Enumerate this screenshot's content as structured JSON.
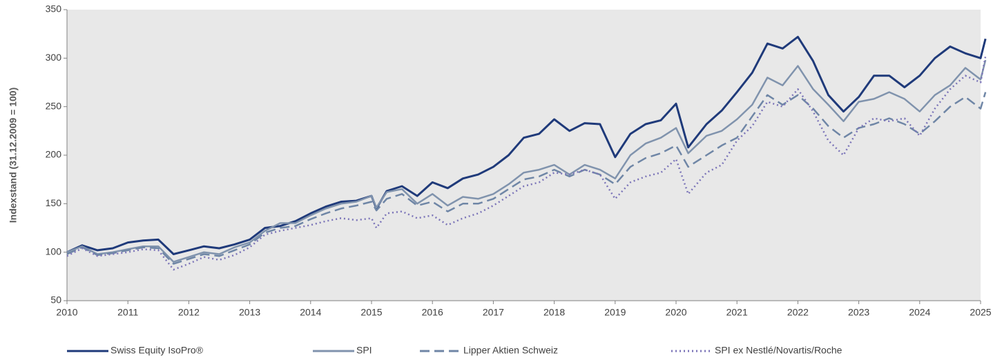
{
  "chart_data": {
    "type": "line",
    "y_label": "Indexstand (31.12.2009 = 100)",
    "x": [
      2010,
      2010.25,
      2010.5,
      2010.75,
      2011,
      2011.25,
      2011.5,
      2011.75,
      2012,
      2012.25,
      2012.5,
      2012.75,
      2013,
      2013.25,
      2013.5,
      2013.75,
      2014,
      2014.25,
      2014.5,
      2014.75,
      2015,
      2015.08,
      2015.25,
      2015.5,
      2015.75,
      2016,
      2016.25,
      2016.5,
      2016.75,
      2017,
      2017.25,
      2017.5,
      2017.75,
      2018,
      2018.25,
      2018.5,
      2018.75,
      2019,
      2019.25,
      2019.5,
      2019.75,
      2020,
      2020.2,
      2020.5,
      2020.75,
      2021,
      2021.25,
      2021.5,
      2021.75,
      2022,
      2022.25,
      2022.5,
      2022.75,
      2023,
      2023.25,
      2023.5,
      2023.75,
      2024,
      2024.25,
      2024.5,
      2024.75,
      2025,
      2025.08
    ],
    "series": [
      {
        "name": "Swiss Equity IsoPro®",
        "color": "#1f3a7a",
        "style": "solid",
        "values": [
          100,
          107,
          102,
          104,
          110,
          112,
          113,
          98,
          102,
          106,
          104,
          108,
          113,
          125,
          127,
          132,
          140,
          147,
          152,
          153,
          158,
          145,
          163,
          168,
          158,
          172,
          166,
          176,
          180,
          188,
          200,
          218,
          222,
          237,
          225,
          233,
          232,
          198,
          222,
          232,
          236,
          253,
          208,
          232,
          246,
          265,
          285,
          315,
          310,
          322,
          297,
          262,
          245,
          260,
          282,
          282,
          270,
          282,
          300,
          312,
          305,
          300,
          320
        ]
      },
      {
        "name": "SPI",
        "color": "#8093ad",
        "style": "solid",
        "values": [
          100,
          106,
          98,
          100,
          103,
          106,
          106,
          90,
          95,
          100,
          98,
          105,
          110,
          122,
          130,
          130,
          138,
          145,
          150,
          152,
          158,
          146,
          162,
          165,
          150,
          160,
          148,
          157,
          155,
          160,
          170,
          182,
          185,
          190,
          180,
          190,
          185,
          176,
          200,
          212,
          218,
          228,
          202,
          220,
          225,
          237,
          252,
          280,
          272,
          292,
          268,
          252,
          235,
          255,
          258,
          265,
          258,
          245,
          262,
          272,
          290,
          278,
          298
        ]
      },
      {
        "name": "Lipper Aktien Schweiz",
        "color": "#6f86a6",
        "style": "dashed",
        "values": [
          98,
          105,
          97,
          99,
          102,
          105,
          104,
          88,
          93,
          98,
          96,
          102,
          108,
          120,
          125,
          127,
          134,
          140,
          145,
          148,
          152,
          143,
          155,
          160,
          148,
          152,
          142,
          150,
          150,
          155,
          165,
          175,
          178,
          185,
          178,
          185,
          180,
          170,
          188,
          197,
          202,
          210,
          188,
          200,
          210,
          218,
          240,
          262,
          252,
          262,
          248,
          230,
          218,
          228,
          232,
          238,
          232,
          222,
          235,
          250,
          260,
          248,
          265
        ]
      },
      {
        "name": "SPI ex Nestlé/Novartis/Roche",
        "color": "#7b74b8",
        "style": "dotted",
        "values": [
          96,
          104,
          96,
          98,
          100,
          103,
          102,
          82,
          88,
          95,
          92,
          97,
          105,
          118,
          122,
          125,
          128,
          132,
          135,
          133,
          135,
          125,
          140,
          142,
          135,
          138,
          128,
          135,
          140,
          148,
          158,
          168,
          172,
          182,
          180,
          185,
          180,
          155,
          172,
          178,
          182,
          196,
          160,
          182,
          190,
          215,
          230,
          255,
          250,
          268,
          245,
          215,
          200,
          228,
          238,
          235,
          238,
          220,
          248,
          268,
          282,
          275,
          302
        ]
      }
    ],
    "xlim": [
      2010,
      2025
    ],
    "xticks": [
      2010,
      2011,
      2012,
      2013,
      2014,
      2015,
      2016,
      2017,
      2018,
      2019,
      2020,
      2021,
      2022,
      2023,
      2024,
      2025
    ],
    "ylim": [
      50,
      350
    ],
    "yticks": [
      50,
      100,
      150,
      200,
      250,
      300,
      350
    ],
    "grid": false,
    "legend": "bottom"
  }
}
